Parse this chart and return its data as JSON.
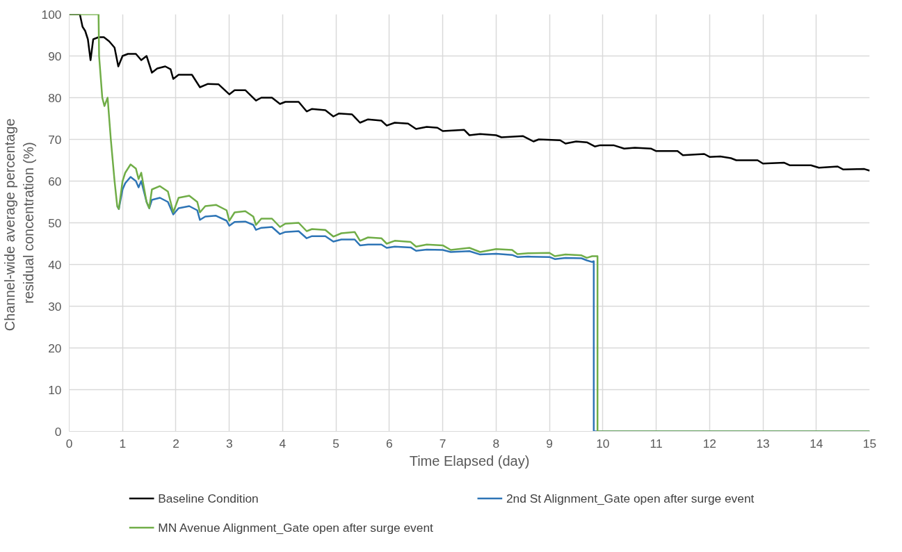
{
  "chart_data": {
    "type": "line",
    "xlabel": "Time Elapsed (day)",
    "ylabel": "Channel-wide average  percentage residual concentration (%)",
    "xlim": [
      0,
      15
    ],
    "xticks": [
      0,
      1,
      2,
      3,
      4,
      5,
      6,
      7,
      8,
      9,
      10,
      11,
      12,
      13,
      14,
      15
    ],
    "ylim": [
      0,
      100
    ],
    "yticks": [
      0,
      10,
      20,
      30,
      40,
      50,
      60,
      70,
      80,
      90,
      100
    ],
    "grid": true,
    "legend": "bottom",
    "marker": "none",
    "line_style": "solid",
    "series": [
      {
        "name": "Baseline Condition",
        "color": "#000000",
        "x": [
          0,
          0.2,
          0.25,
          0.3,
          0.35,
          0.4,
          0.45,
          0.55,
          0.65,
          0.75,
          0.85,
          0.92,
          1.0,
          1.1,
          1.25,
          1.35,
          1.45,
          1.55,
          1.65,
          1.8,
          1.9,
          1.95,
          2.05,
          2.3,
          2.45,
          2.6,
          2.8,
          3.0,
          3.1,
          3.3,
          3.5,
          3.6,
          3.8,
          3.95,
          4.05,
          4.3,
          4.45,
          4.55,
          4.8,
          4.95,
          5.05,
          5.3,
          5.45,
          5.6,
          5.85,
          5.95,
          6.1,
          6.35,
          6.5,
          6.7,
          6.9,
          7.0,
          7.4,
          7.5,
          7.7,
          8.0,
          8.1,
          8.5,
          8.7,
          8.8,
          9.2,
          9.3,
          9.5,
          9.7,
          9.85,
          9.95,
          10.2,
          10.4,
          10.6,
          10.9,
          11.0,
          11.4,
          11.5,
          11.9,
          12.0,
          12.2,
          12.4,
          12.5,
          12.9,
          13.0,
          13.4,
          13.5,
          13.9,
          14.05,
          14.4,
          14.5,
          14.9,
          15.0
        ],
        "values": [
          100,
          100,
          97,
          96,
          94,
          89,
          94,
          94.5,
          94.5,
          93.5,
          92,
          87.5,
          90,
          90.5,
          90.5,
          89,
          90,
          86,
          87,
          87.5,
          86.8,
          84.5,
          85.5,
          85.5,
          82.5,
          83.3,
          83.2,
          80.8,
          81.8,
          81.8,
          79.3,
          80,
          80,
          78.5,
          79,
          79,
          76.7,
          77.3,
          77,
          75.5,
          76.2,
          76,
          74,
          74.8,
          74.5,
          73.3,
          74,
          73.8,
          72.5,
          73,
          72.8,
          72,
          72.3,
          71,
          71.3,
          71,
          70.5,
          70.8,
          69.5,
          70,
          69.8,
          69,
          69.5,
          69.3,
          68.3,
          68.6,
          68.6,
          67.8,
          68,
          67.8,
          67.2,
          67.2,
          66.2,
          66.5,
          65.8,
          65.9,
          65.5,
          65,
          65,
          64.2,
          64.4,
          63.8,
          63.8,
          63.2,
          63.5,
          62.8,
          62.9,
          62.5
        ]
      },
      {
        "name": "2nd St Alignment_Gate open after surge event",
        "color": "#2e75b6",
        "x": [
          0.9,
          0.93,
          1.0,
          1.05,
          1.15,
          1.25,
          1.3,
          1.35,
          1.45,
          1.5,
          1.55,
          1.7,
          1.85,
          1.95,
          2.05,
          2.25,
          2.4,
          2.45,
          2.55,
          2.75,
          2.95,
          3.0,
          3.1,
          3.3,
          3.45,
          3.5,
          3.6,
          3.8,
          3.95,
          4.05,
          4.3,
          4.45,
          4.55,
          4.8,
          4.95,
          5.1,
          5.35,
          5.45,
          5.6,
          5.85,
          5.95,
          6.1,
          6.4,
          6.5,
          6.7,
          7.0,
          7.15,
          7.5,
          7.7,
          8.0,
          8.3,
          8.4,
          8.6,
          9.0,
          9.1,
          9.3,
          9.6,
          9.7,
          9.8,
          9.83,
          9.83,
          15
        ],
        "values": [
          54,
          53.3,
          58,
          59.5,
          61,
          60,
          58.5,
          60,
          55,
          53.5,
          55.5,
          56,
          55,
          52,
          53.5,
          54,
          53,
          50.7,
          51.5,
          51.7,
          50.5,
          49.3,
          50.2,
          50.3,
          49.5,
          48.3,
          48.8,
          49,
          47.3,
          47.8,
          48,
          46.3,
          46.8,
          46.8,
          45.5,
          46,
          46,
          44.6,
          44.8,
          44.8,
          44,
          44.3,
          44.1,
          43.3,
          43.6,
          43.5,
          43,
          43.2,
          42.4,
          42.6,
          42.3,
          41.8,
          41.9,
          41.8,
          41.3,
          41.6,
          41.5,
          41,
          40.6,
          40.8,
          0,
          0
        ]
      },
      {
        "name": "MN Avenue Alignment_Gate open after surge event",
        "color": "#70ad47",
        "x": [
          0,
          0.55,
          0.56,
          0.62,
          0.66,
          0.72,
          0.78,
          0.85,
          0.9,
          0.93,
          1.0,
          1.05,
          1.15,
          1.25,
          1.3,
          1.35,
          1.45,
          1.5,
          1.55,
          1.7,
          1.85,
          1.95,
          2.05,
          2.25,
          2.4,
          2.45,
          2.55,
          2.75,
          2.95,
          3.0,
          3.1,
          3.3,
          3.45,
          3.5,
          3.6,
          3.8,
          3.95,
          4.05,
          4.3,
          4.45,
          4.55,
          4.8,
          4.95,
          5.1,
          5.35,
          5.45,
          5.6,
          5.85,
          5.95,
          6.1,
          6.4,
          6.5,
          6.7,
          7.0,
          7.15,
          7.5,
          7.7,
          8.0,
          8.3,
          8.4,
          8.6,
          9.0,
          9.1,
          9.3,
          9.6,
          9.7,
          9.8,
          9.9,
          9.9,
          15
        ],
        "values": [
          100,
          100,
          90,
          80,
          78,
          80,
          70,
          60,
          54,
          53.3,
          60,
          62,
          64,
          63,
          60.5,
          62,
          55,
          53.5,
          58,
          58.8,
          57.5,
          52.5,
          56,
          56.5,
          55,
          52.5,
          54,
          54.3,
          53,
          50.5,
          52.5,
          52.8,
          51.5,
          49.5,
          51,
          51,
          49,
          49.8,
          50,
          48,
          48.5,
          48.3,
          46.7,
          47.5,
          47.8,
          45.7,
          46.5,
          46.3,
          45,
          45.7,
          45.4,
          44.3,
          44.8,
          44.6,
          43.5,
          44,
          43,
          43.7,
          43.5,
          42.5,
          42.7,
          42.8,
          42,
          42.4,
          42.2,
          41.6,
          42,
          42,
          0,
          0
        ]
      }
    ]
  }
}
